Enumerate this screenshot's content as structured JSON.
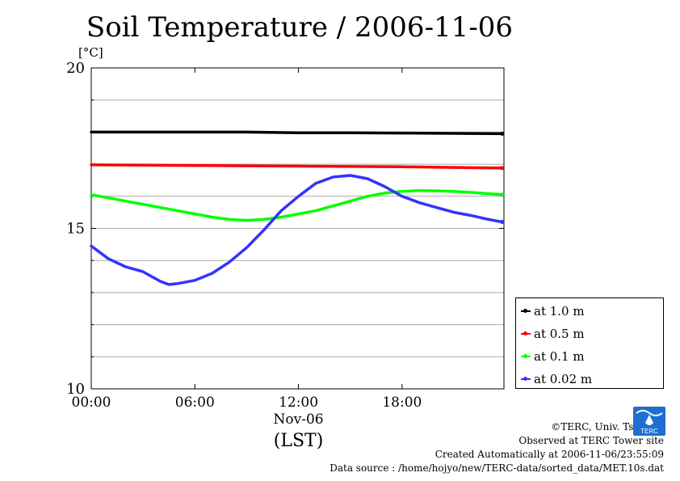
{
  "title": "Soil Temperature / 2006-11-06",
  "credits": {
    "copyright": "©TERC, Univ. Tsukuba",
    "observed": "Observed at TERC Tower site",
    "created": "Created Automatically at 2006-11-06/23:55:09",
    "source": "Data source : /home/hojyo/new/TERC-data/sorted_data/MET.10s.dat"
  },
  "logo": {
    "text": "TERC",
    "color": "#1e6fd0",
    "icon": "terc-logo-icon"
  },
  "chart_data": {
    "type": "line",
    "ylabel": "[°C]",
    "xlabel": "(LST)",
    "date_label": "Nov-06",
    "ylim": [
      10,
      20
    ],
    "y_ticks": [
      10,
      15,
      20
    ],
    "y_tick_labels": [
      "10",
      "15",
      "20"
    ],
    "y_grid_step": 1,
    "xlim": [
      0,
      23.9
    ],
    "x_ticks": [
      0,
      6,
      12,
      18
    ],
    "x_tick_labels": [
      "00:00",
      "06:00",
      "12:00",
      "18:00"
    ],
    "grid": true,
    "legend_position": "right",
    "series": [
      {
        "name": "at 1.0 m",
        "color": "#000000",
        "x": [
          0,
          3,
          6,
          9,
          12,
          15,
          18,
          21,
          23.8
        ],
        "y": [
          18.0,
          18.0,
          18.0,
          18.0,
          17.98,
          17.98,
          17.97,
          17.96,
          17.95
        ]
      },
      {
        "name": "at 0.5 m",
        "color": "#ff0000",
        "x": [
          0,
          3,
          6,
          9,
          12,
          15,
          18,
          21,
          23.8
        ],
        "y": [
          16.98,
          16.97,
          16.96,
          16.95,
          16.94,
          16.93,
          16.92,
          16.9,
          16.88
        ]
      },
      {
        "name": "at 0.1 m",
        "color": "#00ff00",
        "x": [
          0,
          1,
          2,
          3,
          4,
          5,
          6,
          7,
          8,
          9,
          10,
          11,
          12,
          13,
          14,
          15,
          16,
          17,
          18,
          19,
          20,
          21,
          22,
          23,
          23.8
        ],
        "y": [
          16.05,
          15.95,
          15.85,
          15.75,
          15.65,
          15.55,
          15.45,
          15.35,
          15.28,
          15.25,
          15.28,
          15.35,
          15.45,
          15.55,
          15.7,
          15.85,
          16.0,
          16.1,
          16.15,
          16.18,
          16.17,
          16.15,
          16.12,
          16.08,
          16.05
        ]
      },
      {
        "name": "at 0.02 m",
        "color": "#3333ff",
        "x": [
          0,
          1,
          2,
          3,
          4,
          4.5,
          5,
          6,
          7,
          8,
          9,
          10,
          11,
          12,
          13,
          14,
          15,
          16,
          17,
          18,
          19,
          20,
          21,
          22,
          23,
          23.8
        ],
        "y": [
          14.45,
          14.05,
          13.8,
          13.65,
          13.35,
          13.25,
          13.28,
          13.38,
          13.6,
          13.95,
          14.4,
          14.95,
          15.55,
          16.0,
          16.4,
          16.6,
          16.65,
          16.55,
          16.3,
          16.0,
          15.8,
          15.65,
          15.5,
          15.4,
          15.28,
          15.2
        ]
      }
    ]
  }
}
